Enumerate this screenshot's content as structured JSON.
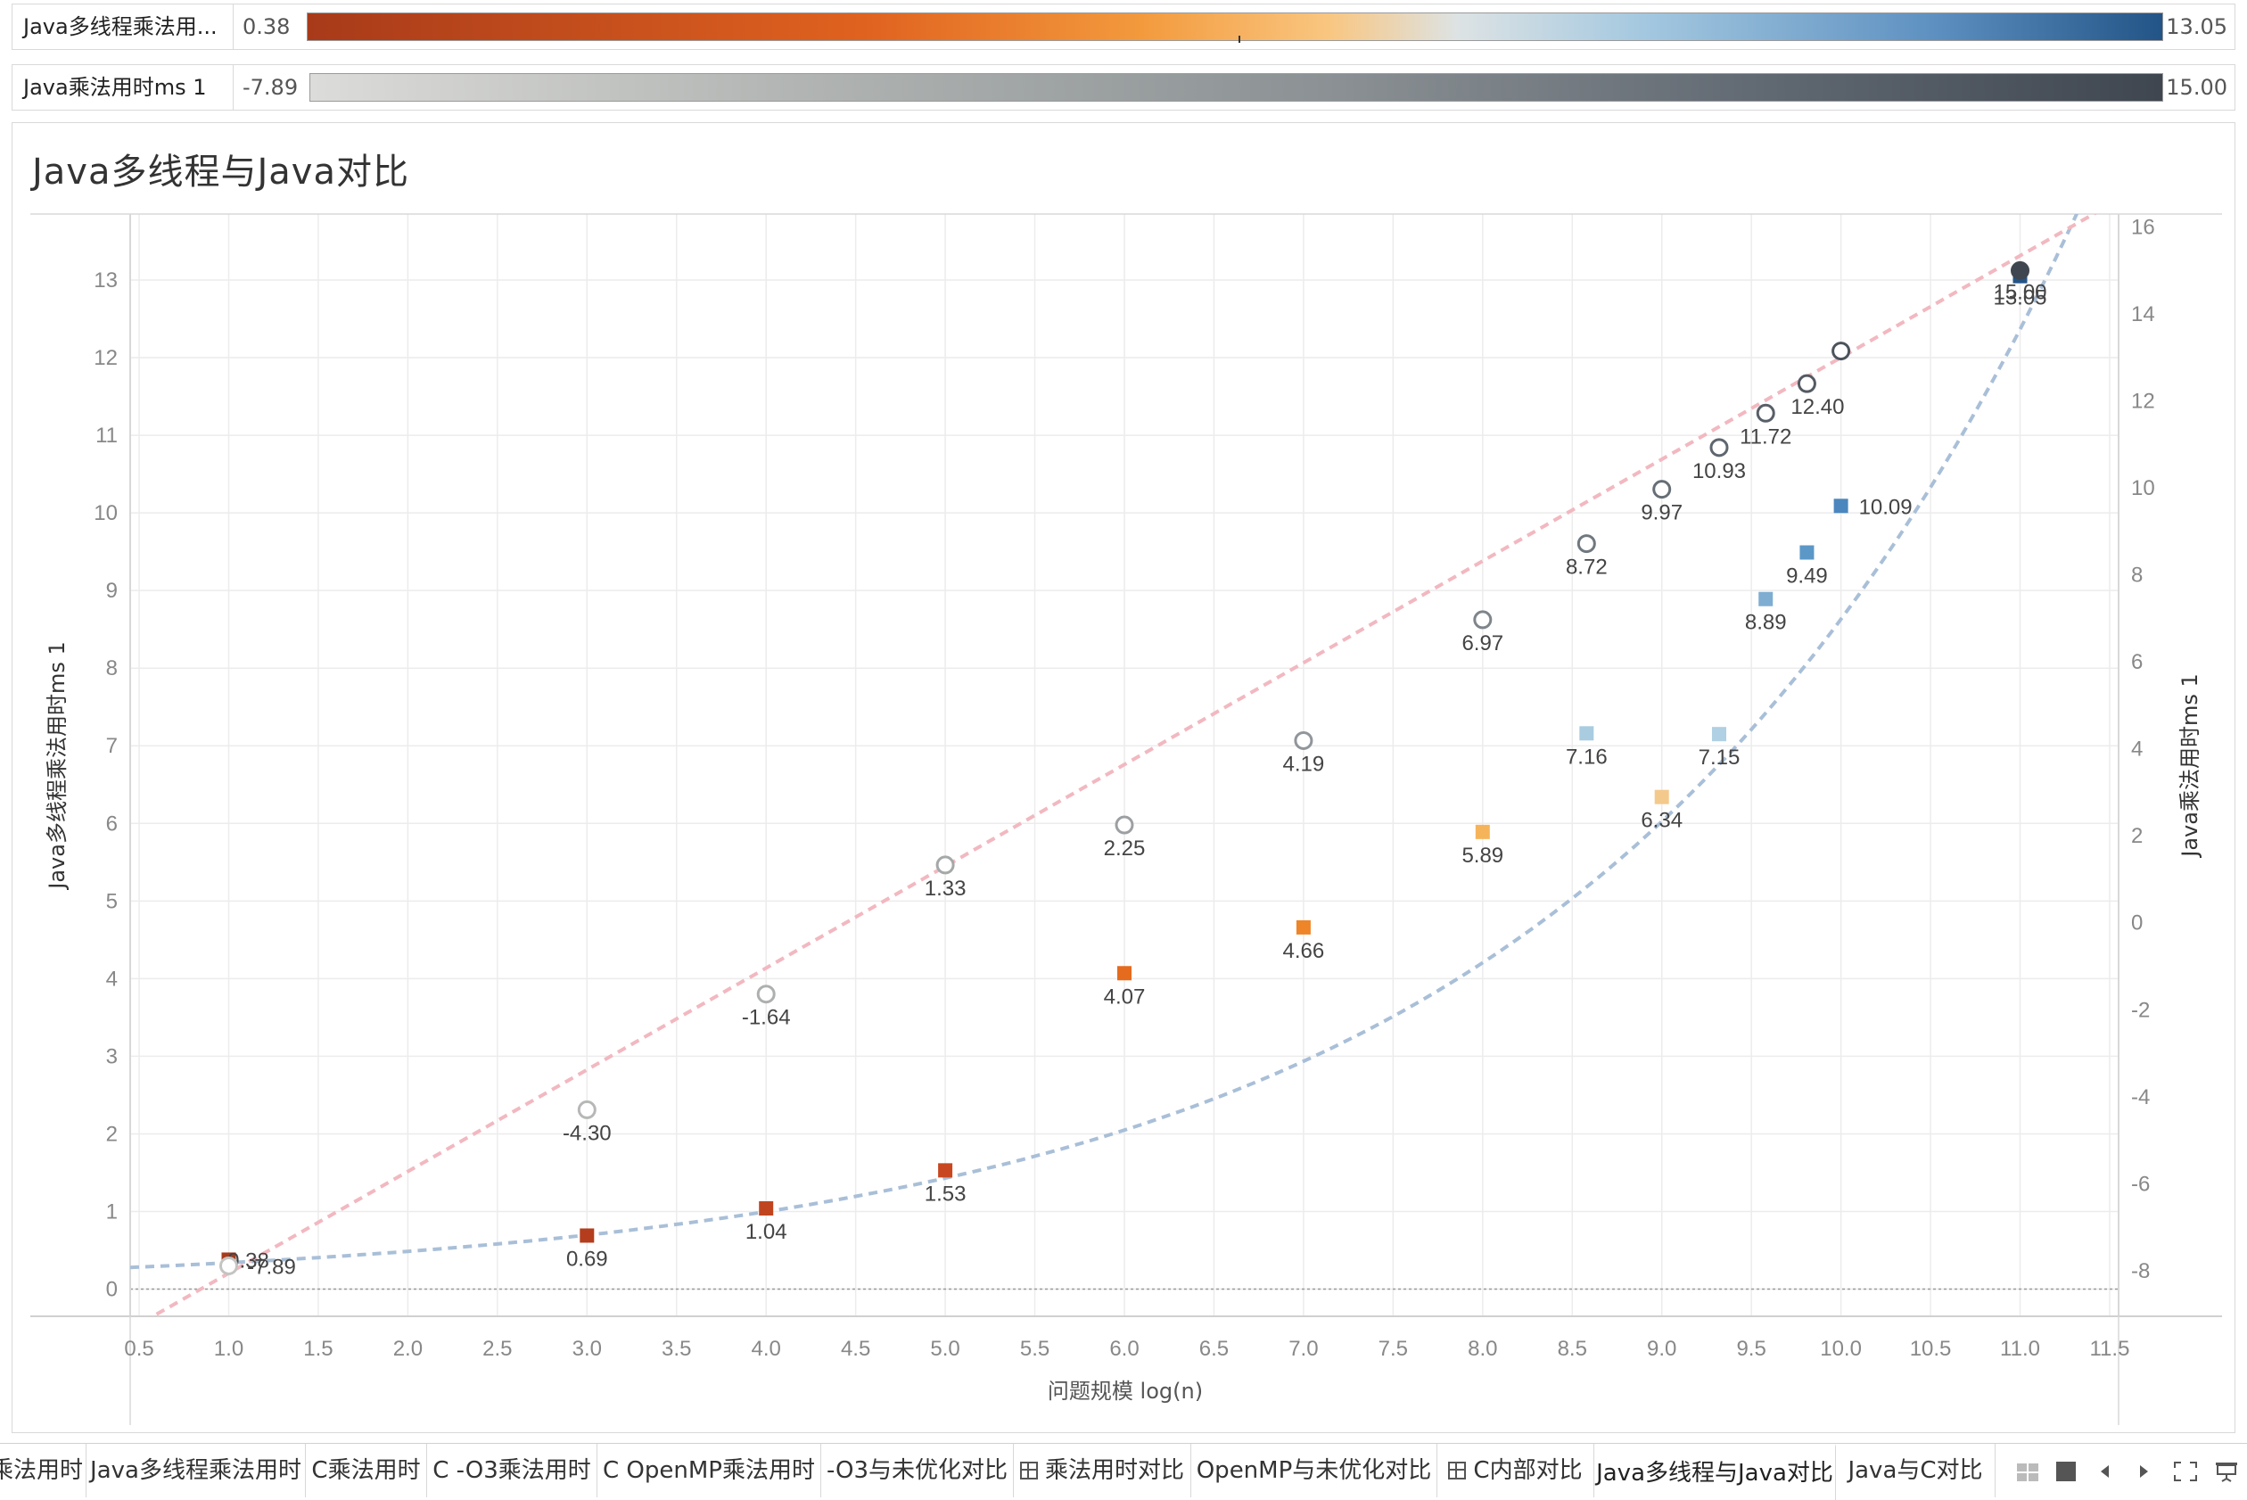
{
  "legends": [
    {
      "title": "Java多线程乘法用...",
      "min": "0.38",
      "max": "13.05"
    },
    {
      "title": "Java乘法用时ms 1",
      "min": "-7.89",
      "max": "15.00"
    }
  ],
  "chart": {
    "title": "Java多线程与Java对比"
  },
  "chart_data": {
    "type": "scatter",
    "title": "Java多线程与Java对比",
    "xlabel": "问题规模 log(n)",
    "ylabel_left": "Java多线程乘法用时ms 1",
    "ylabel_right": "Java乘法用时ms 1",
    "xlim": [
      0.45,
      11.55
    ],
    "ylim_left": [
      -0.35,
      13.85
    ],
    "ylim_right": [
      -9.05,
      16.3
    ],
    "x_ticks": [
      "0.5",
      "1.0",
      "1.5",
      "2.0",
      "2.5",
      "3.0",
      "3.5",
      "4.0",
      "4.5",
      "5.0",
      "5.5",
      "6.0",
      "6.5",
      "7.0",
      "7.5",
      "8.0",
      "8.5",
      "9.0",
      "9.5",
      "10.0",
      "10.5",
      "11.0",
      "11.5"
    ],
    "y_left_ticks": [
      "0",
      "1",
      "2",
      "3",
      "4",
      "5",
      "6",
      "7",
      "8",
      "9",
      "10",
      "11",
      "12",
      "13"
    ],
    "y_right_ticks": [
      "-8",
      "-6",
      "-4",
      "-2",
      "0",
      "2",
      "4",
      "6",
      "8",
      "10",
      "12",
      "14",
      "16"
    ],
    "grid": true,
    "series": [
      {
        "axis": "left",
        "marker": "square",
        "x": [
          1.0,
          3.0,
          4.0,
          5.0,
          6.0,
          7.0,
          8.0,
          8.58,
          9.0,
          9.32,
          9.58,
          9.81,
          10.0,
          11.0
        ],
        "values": [
          0.38,
          0.69,
          1.04,
          1.53,
          4.07,
          4.66,
          5.89,
          7.16,
          6.34,
          7.15,
          8.89,
          9.49,
          10.09,
          13.05
        ],
        "labels": [
          "0.38",
          "0.69",
          "1.04",
          "1.53",
          "4.07",
          "4.66",
          "5.89",
          "7.16",
          "6.34",
          "7.15",
          "8.89",
          "9.49",
          "10.09",
          "13.05"
        ],
        "colors": [
          "#a73a1b",
          "#b33d1c",
          "#c0451f",
          "#c84720",
          "#e56b1f",
          "#ee8528",
          "#f6b45a",
          "#a9cce0",
          "#f4c98c",
          "#b0d0e3",
          "#7fadd2",
          "#5b98c8",
          "#4b87be",
          "#235487"
        ]
      },
      {
        "axis": "right",
        "marker": "circle",
        "x": [
          1.0,
          3.0,
          4.0,
          5.0,
          6.0,
          7.0,
          8.0,
          8.58,
          9.0,
          9.32,
          9.58,
          9.81,
          10.0,
          11.0
        ],
        "values": [
          -7.89,
          -4.3,
          -1.64,
          1.33,
          2.25,
          4.19,
          6.97,
          8.72,
          9.97,
          10.93,
          11.72,
          12.4,
          13.15,
          15.0
        ],
        "labels": [
          "-7.89",
          "-4.30",
          "-1.64",
          "1.33",
          "2.25",
          "4.19",
          "6.97",
          "8.72",
          "9.97",
          "10.93",
          "11.72",
          "12.40",
          "",
          "15.00"
        ],
        "colors": [
          "#c4c4c2",
          "#b6b8b6",
          "#adb0af",
          "#a4a8a8",
          "#9ca0a2",
          "#90969a",
          "#7e858b",
          "#70787f",
          "#666e76",
          "#5e666f",
          "#585f68",
          "#535a63",
          "#4c535c",
          "#3f4650"
        ]
      }
    ],
    "trendlines": [
      {
        "series_axis": "left",
        "type": "exponential",
        "color": "#a9bfd8",
        "a": 0.237,
        "b": 0.3595
      },
      {
        "series_axis": "right",
        "type": "linear",
        "color": "#f2b8c0",
        "slope": 2.34,
        "intercept": -10.4
      }
    ]
  },
  "tabs": [
    {
      "label": "乘法用时",
      "icon": "",
      "active": false
    },
    {
      "label": "Java多线程乘法用时",
      "icon": "",
      "active": false
    },
    {
      "label": "C乘法用时",
      "icon": "",
      "active": false
    },
    {
      "label": "C -O3乘法用时",
      "icon": "",
      "active": false
    },
    {
      "label": "C OpenMP乘法用时",
      "icon": "",
      "active": false
    },
    {
      "label": "-O3与未优化对比",
      "icon": "",
      "active": false
    },
    {
      "label": "乘法用时对比",
      "icon": "dashboard-icon",
      "active": false
    },
    {
      "label": "OpenMP与未优化对比",
      "icon": "",
      "active": false
    },
    {
      "label": "C内部对比",
      "icon": "dashboard-icon",
      "active": false
    },
    {
      "label": "Java多线程与Java对比",
      "icon": "",
      "active": true
    },
    {
      "label": "Java与C对比",
      "icon": "",
      "active": false
    }
  ]
}
